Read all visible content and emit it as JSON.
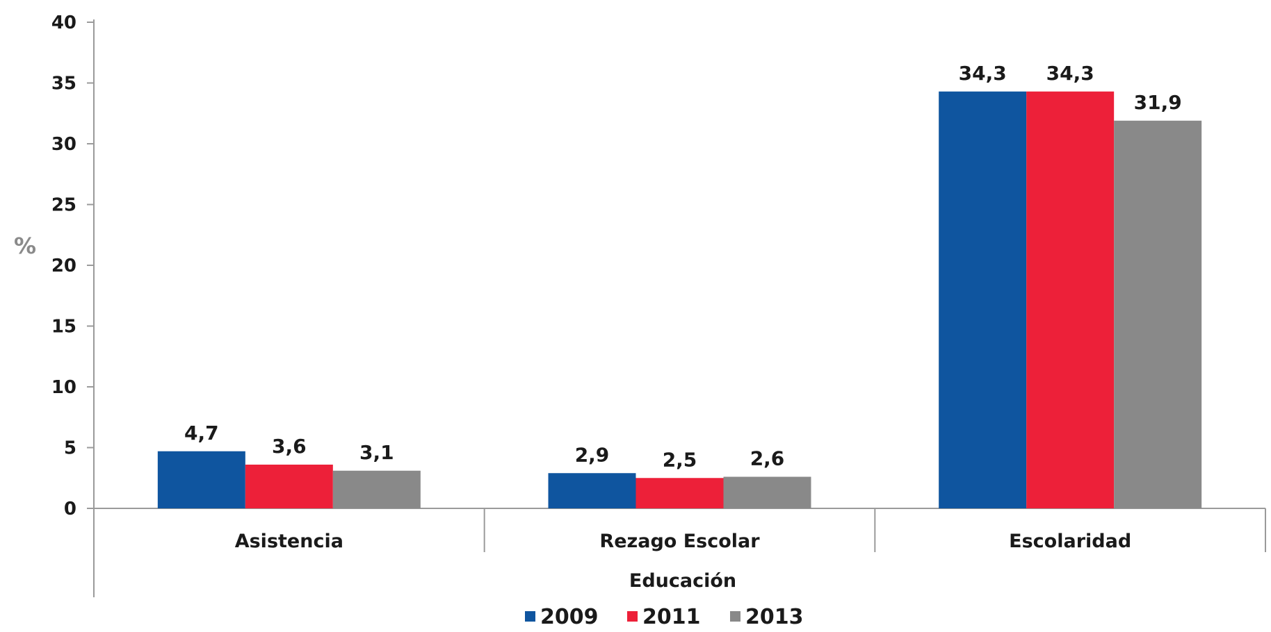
{
  "chart_data": {
    "type": "bar",
    "title": "",
    "xlabel": "Educación",
    "ylabel": "%",
    "ylim": [
      0,
      40
    ],
    "yticks": [
      0,
      5,
      10,
      15,
      20,
      25,
      30,
      35,
      40
    ],
    "grid": false,
    "legend_position": "bottom",
    "categories": [
      "Asistencia",
      "Rezago Escolar",
      "Escolaridad"
    ],
    "series": [
      {
        "name": "2009",
        "color": "#0f559f",
        "values": [
          4.7,
          2.9,
          34.3
        ],
        "labels": [
          "4,7",
          "2,9",
          "34,3"
        ]
      },
      {
        "name": "2011",
        "color": "#ed2039",
        "values": [
          3.6,
          2.5,
          34.3
        ],
        "labels": [
          "3,6",
          "2,5",
          "34,3"
        ]
      },
      {
        "name": "2013",
        "color": "#898989",
        "values": [
          3.1,
          2.6,
          31.9
        ],
        "labels": [
          "3,1",
          "2,6",
          "31,9"
        ]
      }
    ]
  }
}
